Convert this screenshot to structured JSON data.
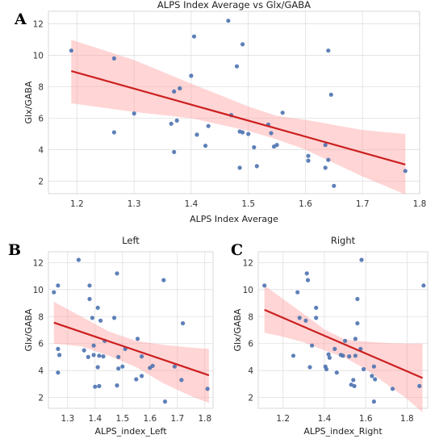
{
  "figure": {
    "labels": [
      "A",
      "B",
      "C"
    ]
  },
  "chart_data": [
    {
      "id": "main",
      "type": "scatter",
      "title": "ALPS Index Average vs Glx/GABA",
      "xlabel": "ALPS Index Average",
      "ylabel": "Glx/GABA",
      "xlim": [
        1.15,
        1.8
      ],
      "ylim": [
        1.2,
        12.8
      ],
      "xticks": [
        1.2,
        1.3,
        1.4,
        1.5,
        1.6,
        1.7,
        1.8
      ],
      "yticks": [
        2,
        4,
        6,
        8,
        10,
        12
      ],
      "grid": true,
      "fit": {
        "x": [
          1.19,
          1.775
        ],
        "y": [
          9.0,
          3.05
        ]
      },
      "band": {
        "x": [
          1.19,
          1.3,
          1.4,
          1.5,
          1.55,
          1.6,
          1.7,
          1.775
        ],
        "upper": [
          11.0,
          9.7,
          8.2,
          6.75,
          6.15,
          5.9,
          5.25,
          5.0
        ],
        "lower": [
          6.95,
          6.4,
          6.0,
          5.2,
          4.65,
          4.0,
          2.3,
          1.15
        ]
      },
      "points": [
        {
          "x": 1.19,
          "y": 10.3
        },
        {
          "x": 1.265,
          "y": 9.8
        },
        {
          "x": 1.265,
          "y": 5.1
        },
        {
          "x": 1.3,
          "y": 6.3
        },
        {
          "x": 1.365,
          "y": 5.65
        },
        {
          "x": 1.37,
          "y": 7.7
        },
        {
          "x": 1.375,
          "y": 5.85
        },
        {
          "x": 1.38,
          "y": 7.9
        },
        {
          "x": 1.37,
          "y": 3.85
        },
        {
          "x": 1.4,
          "y": 8.7
        },
        {
          "x": 1.405,
          "y": 11.2
        },
        {
          "x": 1.41,
          "y": 4.95
        },
        {
          "x": 1.43,
          "y": 5.5
        },
        {
          "x": 1.425,
          "y": 4.25
        },
        {
          "x": 1.465,
          "y": 12.2
        },
        {
          "x": 1.47,
          "y": 6.2
        },
        {
          "x": 1.48,
          "y": 9.3
        },
        {
          "x": 1.485,
          "y": 5.15
        },
        {
          "x": 1.49,
          "y": 10.7
        },
        {
          "x": 1.49,
          "y": 5.1
        },
        {
          "x": 1.485,
          "y": 2.85
        },
        {
          "x": 1.5,
          "y": 5.0
        },
        {
          "x": 1.51,
          "y": 4.15
        },
        {
          "x": 1.515,
          "y": 2.95
        },
        {
          "x": 1.535,
          "y": 5.6
        },
        {
          "x": 1.54,
          "y": 5.05
        },
        {
          "x": 1.545,
          "y": 4.2
        },
        {
          "x": 1.55,
          "y": 4.3
        },
        {
          "x": 1.56,
          "y": 6.35
        },
        {
          "x": 1.605,
          "y": 3.6
        },
        {
          "x": 1.605,
          "y": 3.3
        },
        {
          "x": 1.635,
          "y": 4.3
        },
        {
          "x": 1.635,
          "y": 2.85
        },
        {
          "x": 1.64,
          "y": 3.35
        },
        {
          "x": 1.64,
          "y": 10.3
        },
        {
          "x": 1.645,
          "y": 7.5
        },
        {
          "x": 1.65,
          "y": 1.7
        },
        {
          "x": 1.775,
          "y": 2.65
        }
      ]
    },
    {
      "id": "left",
      "type": "scatter",
      "title": "Left",
      "xlabel": "ALPS_index_Left",
      "ylabel": "Glx/GABA",
      "xlim": [
        1.23,
        1.83
      ],
      "ylim": [
        1.2,
        12.8
      ],
      "xticks": [
        1.3,
        1.4,
        1.5,
        1.6,
        1.7,
        1.8
      ],
      "yticks": [
        2,
        4,
        6,
        8,
        10,
        12
      ],
      "grid": true,
      "fit": {
        "x": [
          1.25,
          1.815
        ],
        "y": [
          7.55,
          3.65
        ]
      },
      "band": {
        "x": [
          1.25,
          1.35,
          1.45,
          1.55,
          1.65,
          1.75,
          1.815
        ],
        "upper": [
          9.1,
          8.0,
          6.9,
          6.2,
          5.9,
          5.7,
          5.6
        ],
        "lower": [
          6.0,
          5.8,
          5.1,
          4.25,
          3.05,
          2.1,
          1.6
        ]
      },
      "points": [
        {
          "x": 1.25,
          "y": 9.8
        },
        {
          "x": 1.265,
          "y": 10.3
        },
        {
          "x": 1.265,
          "y": 5.6
        },
        {
          "x": 1.27,
          "y": 5.15
        },
        {
          "x": 1.265,
          "y": 3.85
        },
        {
          "x": 1.34,
          "y": 12.2
        },
        {
          "x": 1.36,
          "y": 5.5
        },
        {
          "x": 1.375,
          "y": 5.0
        },
        {
          "x": 1.38,
          "y": 10.3
        },
        {
          "x": 1.38,
          "y": 9.3
        },
        {
          "x": 1.39,
          "y": 7.9
        },
        {
          "x": 1.395,
          "y": 5.85
        },
        {
          "x": 1.395,
          "y": 5.15
        },
        {
          "x": 1.41,
          "y": 8.65
        },
        {
          "x": 1.41,
          "y": 4.25
        },
        {
          "x": 1.415,
          "y": 2.85
        },
        {
          "x": 1.4,
          "y": 2.8
        },
        {
          "x": 1.415,
          "y": 5.1
        },
        {
          "x": 1.42,
          "y": 7.7
        },
        {
          "x": 1.43,
          "y": 5.05
        },
        {
          "x": 1.435,
          "y": 6.2
        },
        {
          "x": 1.47,
          "y": 7.9
        },
        {
          "x": 1.48,
          "y": 11.2
        },
        {
          "x": 1.485,
          "y": 5.0
        },
        {
          "x": 1.485,
          "y": 4.15
        },
        {
          "x": 1.48,
          "y": 2.9
        },
        {
          "x": 1.5,
          "y": 4.3
        },
        {
          "x": 1.51,
          "y": 5.6
        },
        {
          "x": 1.55,
          "y": 3.35
        },
        {
          "x": 1.555,
          "y": 6.35
        },
        {
          "x": 1.57,
          "y": 5.05
        },
        {
          "x": 1.57,
          "y": 3.6
        },
        {
          "x": 1.6,
          "y": 4.2
        },
        {
          "x": 1.61,
          "y": 4.35
        },
        {
          "x": 1.65,
          "y": 10.7
        },
        {
          "x": 1.655,
          "y": 1.7
        },
        {
          "x": 1.69,
          "y": 4.3
        },
        {
          "x": 1.715,
          "y": 3.3
        },
        {
          "x": 1.72,
          "y": 7.5
        },
        {
          "x": 1.81,
          "y": 2.65
        }
      ]
    },
    {
      "id": "right",
      "type": "scatter",
      "title": "Right",
      "xlabel": "ALPS_index_Right",
      "ylabel": "Glx/GABA",
      "xlim": [
        1.08,
        1.9
      ],
      "ylim": [
        1.2,
        12.8
      ],
      "xticks": [
        1.2,
        1.4,
        1.6,
        1.8
      ],
      "yticks": [
        2,
        4,
        6,
        8,
        10,
        12
      ],
      "grid": true,
      "fit": {
        "x": [
          1.11,
          1.875
        ],
        "y": [
          8.5,
          3.45
        ]
      },
      "band": {
        "x": [
          1.11,
          1.2,
          1.3,
          1.4,
          1.5,
          1.6,
          1.7,
          1.8,
          1.875
        ],
        "upper": [
          10.3,
          9.3,
          8.2,
          7.05,
          6.3,
          6.15,
          6.05,
          6.0,
          6.0
        ],
        "lower": [
          6.8,
          6.5,
          6.1,
          5.5,
          4.95,
          4.1,
          3.0,
          1.9,
          0.9
        ]
      },
      "points": [
        {
          "x": 1.11,
          "y": 10.3
        },
        {
          "x": 1.25,
          "y": 5.1
        },
        {
          "x": 1.27,
          "y": 9.8
        },
        {
          "x": 1.28,
          "y": 7.9
        },
        {
          "x": 1.31,
          "y": 7.7
        },
        {
          "x": 1.315,
          "y": 11.2
        },
        {
          "x": 1.32,
          "y": 10.7
        },
        {
          "x": 1.34,
          "y": 5.85
        },
        {
          "x": 1.33,
          "y": 4.25
        },
        {
          "x": 1.36,
          "y": 8.65
        },
        {
          "x": 1.36,
          "y": 7.9
        },
        {
          "x": 1.405,
          "y": 4.3
        },
        {
          "x": 1.41,
          "y": 4.1
        },
        {
          "x": 1.42,
          "y": 5.2
        },
        {
          "x": 1.425,
          "y": 4.95
        },
        {
          "x": 1.45,
          "y": 5.6
        },
        {
          "x": 1.46,
          "y": 3.85
        },
        {
          "x": 1.48,
          "y": 5.15
        },
        {
          "x": 1.49,
          "y": 5.1
        },
        {
          "x": 1.5,
          "y": 6.2
        },
        {
          "x": 1.52,
          "y": 5.05
        },
        {
          "x": 1.53,
          "y": 2.95
        },
        {
          "x": 1.54,
          "y": 3.3
        },
        {
          "x": 1.545,
          "y": 2.85
        },
        {
          "x": 1.55,
          "y": 5.1
        },
        {
          "x": 1.55,
          "y": 6.35
        },
        {
          "x": 1.56,
          "y": 9.3
        },
        {
          "x": 1.56,
          "y": 7.5
        },
        {
          "x": 1.575,
          "y": 5.6
        },
        {
          "x": 1.58,
          "y": 12.2
        },
        {
          "x": 1.59,
          "y": 4.1
        },
        {
          "x": 1.63,
          "y": 3.6
        },
        {
          "x": 1.64,
          "y": 4.3
        },
        {
          "x": 1.645,
          "y": 3.35
        },
        {
          "x": 1.64,
          "y": 1.7
        },
        {
          "x": 1.73,
          "y": 2.65
        },
        {
          "x": 1.86,
          "y": 2.85
        },
        {
          "x": 1.88,
          "y": 10.3
        }
      ]
    }
  ]
}
